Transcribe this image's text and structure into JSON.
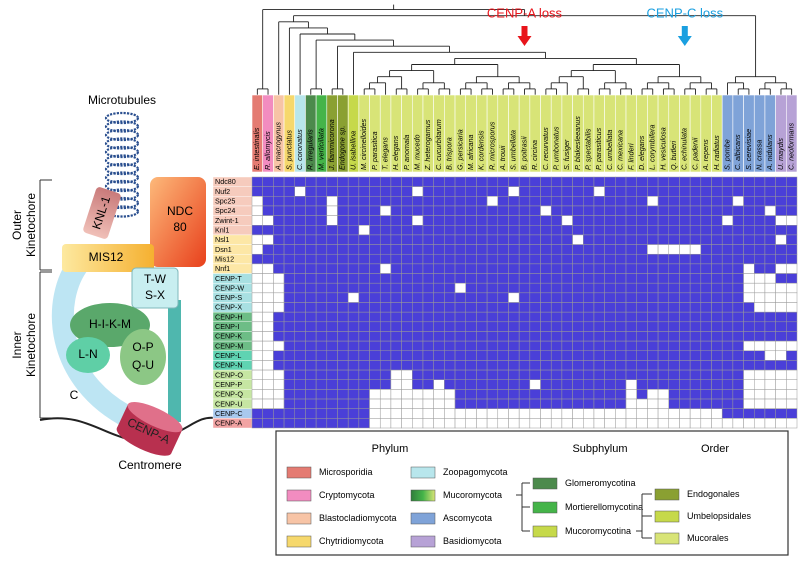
{
  "diagram": {
    "microtubules": "Microtubules",
    "outer": [
      "Outer",
      "Kinetochore"
    ],
    "inner": [
      "Inner",
      "Kinetochore"
    ],
    "ndc80": [
      "NDC",
      "80"
    ],
    "knl1": "KNL-1",
    "mis12": "MIS12",
    "twsx": [
      "T-W",
      "S-X"
    ],
    "hikm": "H-I-K-M",
    "ln": "L-N",
    "opqu": [
      "O-P",
      "Q-U"
    ],
    "c": "C",
    "cenpa": "CENP-A",
    "centromere": "Centromere"
  },
  "events": [
    {
      "label": "CENP-A loss",
      "color": "#e8141b"
    },
    {
      "label": "CENP-C loss",
      "color": "#1a9fe0"
    }
  ],
  "species": [
    {
      "name": "E. intestinalis",
      "color": "#e47b72"
    },
    {
      "name": "R. allomycis",
      "color": "#f28cc0"
    },
    {
      "name": "A. macrogynus",
      "color": "#f7c4a6"
    },
    {
      "name": "S. punctatus",
      "color": "#f6d86c"
    },
    {
      "name": "C. coronatus",
      "color": "#b8e6ec"
    },
    {
      "name": "R. irregularis",
      "color": "#4c8a4c"
    },
    {
      "name": "M. verticillata",
      "color": "#45b449"
    },
    {
      "name": "J. flammicorona",
      "color": "#8aa032"
    },
    {
      "name": "Endogone sp.",
      "color": "#8aa032"
    },
    {
      "name": "U. isabellina",
      "color": "#c6d94a"
    },
    {
      "name": "M. circinelloides",
      "color": "#d8e477"
    },
    {
      "name": "P. parasitica",
      "color": "#d8e477"
    },
    {
      "name": "T. elegans",
      "color": "#d8e477"
    },
    {
      "name": "H. elegans",
      "color": "#d8e477"
    },
    {
      "name": "P. anomala",
      "color": "#d8e477"
    },
    {
      "name": "M. mucedo",
      "color": "#d8e477"
    },
    {
      "name": "Z. heterogamus",
      "color": "#d8e477"
    },
    {
      "name": "C. cucurbitarum",
      "color": "#d8e477"
    },
    {
      "name": "B. trispora",
      "color": "#d8e477"
    },
    {
      "name": "G. persicaria",
      "color": "#d8e477"
    },
    {
      "name": "M. africana",
      "color": "#d8e477"
    },
    {
      "name": "K. cordensis",
      "color": "#d8e477"
    },
    {
      "name": "R. microsporus",
      "color": "#d8e477"
    },
    {
      "name": "A. trouii",
      "color": "#d8e477"
    },
    {
      "name": "S. umbellata",
      "color": "#d8e477"
    },
    {
      "name": "B. poitrasii",
      "color": "#d8e477"
    },
    {
      "name": "R. circina",
      "color": "#d8e477"
    },
    {
      "name": "C. recurvatus",
      "color": "#d8e477"
    },
    {
      "name": "P. umbonatus",
      "color": "#d8e477"
    },
    {
      "name": "S. fusiger",
      "color": "#d8e477"
    },
    {
      "name": "P. blakesleeanus",
      "color": "#d8e477"
    },
    {
      "name": "P. spectabilis",
      "color": "#d8e477"
    },
    {
      "name": "P. parasiticus",
      "color": "#d8e477"
    },
    {
      "name": "C. umbellata",
      "color": "#d8e477"
    },
    {
      "name": "C. mexicana",
      "color": "#d8e477"
    },
    {
      "name": "F. linderi",
      "color": "#d8e477"
    },
    {
      "name": "D. elegans",
      "color": "#d8e477"
    },
    {
      "name": "L. corymbifera",
      "color": "#d8e477"
    },
    {
      "name": "H. vesiculosa",
      "color": "#d8e477"
    },
    {
      "name": "Q. butleri",
      "color": "#d8e477"
    },
    {
      "name": "C. echinulata",
      "color": "#d8e477"
    },
    {
      "name": "C. padenii",
      "color": "#d8e477"
    },
    {
      "name": "A. repens",
      "color": "#d8e477"
    },
    {
      "name": "H. radiatus",
      "color": "#d8e477"
    },
    {
      "name": "S. pombe",
      "color": "#7fa3d8"
    },
    {
      "name": "C. albicans",
      "color": "#7fa3d8"
    },
    {
      "name": "S. cerevisiae",
      "color": "#7fa3d8"
    },
    {
      "name": "N. crassa",
      "color": "#7fa3d8"
    },
    {
      "name": "A. nidulans",
      "color": "#7fa3d8"
    },
    {
      "name": "U. maydis",
      "color": "#b7a2d6"
    },
    {
      "name": "C. neoformans",
      "color": "#b7a2d6"
    }
  ],
  "proteins": [
    {
      "name": "Ndc80",
      "color": "#f6cbbd"
    },
    {
      "name": "Nuf2",
      "color": "#f6cbbd"
    },
    {
      "name": "Spc25",
      "color": "#f6cbbd"
    },
    {
      "name": "Spc24",
      "color": "#f6cbbd"
    },
    {
      "name": "Zwint-1",
      "color": "#f6cbbd"
    },
    {
      "name": "Knl1",
      "color": "#f6cbbd"
    },
    {
      "name": "Nsl1",
      "color": "#fde7a6"
    },
    {
      "name": "Dsn1",
      "color": "#fde7a6"
    },
    {
      "name": "Mis12",
      "color": "#fde7a6"
    },
    {
      "name": "Nnf1",
      "color": "#fde7a6"
    },
    {
      "name": "CENP-T",
      "color": "#a8e0e2"
    },
    {
      "name": "CENP-W",
      "color": "#a8e0e2"
    },
    {
      "name": "CENP-S",
      "color": "#a8e0e2"
    },
    {
      "name": "CENP-X",
      "color": "#a8e0e2"
    },
    {
      "name": "CENP-H",
      "color": "#6dbd86"
    },
    {
      "name": "CENP-I",
      "color": "#6dbd86"
    },
    {
      "name": "CENP-K",
      "color": "#6dbd86"
    },
    {
      "name": "CENP-M",
      "color": "#6dbd86"
    },
    {
      "name": "CENP-L",
      "color": "#5fd3b2"
    },
    {
      "name": "CENP-N",
      "color": "#5fd3b2"
    },
    {
      "name": "CENP-O",
      "color": "#c6e6a2"
    },
    {
      "name": "CENP-P",
      "color": "#c6e6a2"
    },
    {
      "name": "CENP-Q",
      "color": "#c6e6a2"
    },
    {
      "name": "CENP-U",
      "color": "#c6e6a2"
    },
    {
      "name": "CENP-C",
      "color": "#a9c9ee"
    },
    {
      "name": "CENP-A",
      "color": "#f2a3a3"
    }
  ],
  "presence": [
    [
      1,
      1,
      1,
      1,
      1,
      1,
      1,
      1,
      1,
      1,
      1,
      1,
      1,
      1,
      1,
      1,
      1,
      1,
      1,
      1,
      1,
      1,
      1,
      1,
      1,
      1,
      1,
      1,
      1,
      1,
      1,
      1,
      1,
      1,
      1,
      1,
      1,
      1,
      1,
      1,
      1,
      1,
      1,
      1,
      1,
      1,
      1,
      1,
      1,
      1,
      1
    ],
    [
      1,
      1,
      1,
      1,
      0,
      1,
      1,
      1,
      1,
      1,
      1,
      1,
      1,
      1,
      1,
      0,
      1,
      1,
      1,
      1,
      1,
      1,
      1,
      1,
      0,
      1,
      1,
      1,
      1,
      1,
      1,
      1,
      0,
      1,
      1,
      1,
      1,
      1,
      1,
      1,
      1,
      1,
      1,
      1,
      1,
      1,
      1,
      1,
      1,
      1,
      1
    ],
    [
      0,
      1,
      1,
      1,
      1,
      1,
      1,
      0,
      1,
      1,
      1,
      1,
      1,
      1,
      1,
      1,
      1,
      1,
      1,
      1,
      1,
      1,
      0,
      1,
      1,
      1,
      1,
      1,
      1,
      1,
      1,
      1,
      1,
      1,
      1,
      1,
      1,
      0,
      1,
      1,
      1,
      1,
      1,
      1,
      1,
      0,
      1,
      1,
      1,
      1,
      1
    ],
    [
      0,
      1,
      1,
      1,
      1,
      1,
      1,
      0,
      1,
      1,
      1,
      1,
      0,
      1,
      1,
      1,
      1,
      1,
      1,
      1,
      1,
      1,
      1,
      1,
      1,
      1,
      1,
      0,
      1,
      1,
      1,
      1,
      1,
      1,
      1,
      1,
      1,
      1,
      1,
      1,
      1,
      1,
      1,
      1,
      1,
      1,
      1,
      1,
      0,
      1,
      1
    ],
    [
      0,
      0,
      1,
      1,
      1,
      1,
      1,
      0,
      1,
      1,
      1,
      1,
      1,
      1,
      1,
      0,
      1,
      1,
      1,
      1,
      1,
      1,
      1,
      1,
      1,
      1,
      1,
      1,
      1,
      0,
      1,
      1,
      1,
      1,
      1,
      1,
      1,
      1,
      1,
      1,
      1,
      1,
      1,
      1,
      0,
      1,
      1,
      1,
      1,
      0,
      0
    ],
    [
      1,
      1,
      1,
      1,
      1,
      1,
      1,
      1,
      1,
      1,
      0,
      1,
      1,
      1,
      1,
      1,
      1,
      1,
      1,
      1,
      1,
      1,
      1,
      1,
      1,
      1,
      1,
      1,
      1,
      1,
      1,
      1,
      1,
      1,
      1,
      1,
      1,
      1,
      1,
      1,
      1,
      1,
      1,
      1,
      1,
      1,
      1,
      1,
      1,
      1,
      1
    ],
    [
      0,
      0,
      1,
      1,
      1,
      1,
      1,
      1,
      1,
      1,
      1,
      1,
      1,
      1,
      1,
      1,
      1,
      1,
      1,
      1,
      1,
      1,
      1,
      1,
      1,
      1,
      1,
      1,
      1,
      1,
      0,
      1,
      1,
      1,
      1,
      1,
      1,
      1,
      1,
      1,
      1,
      1,
      1,
      1,
      1,
      1,
      1,
      1,
      1,
      0,
      1
    ],
    [
      0,
      1,
      1,
      1,
      1,
      1,
      1,
      1,
      1,
      1,
      1,
      1,
      1,
      1,
      1,
      1,
      1,
      1,
      1,
      1,
      1,
      1,
      1,
      1,
      1,
      1,
      1,
      1,
      1,
      1,
      1,
      1,
      1,
      1,
      1,
      1,
      1,
      0,
      0,
      0,
      0,
      0,
      1,
      1,
      1,
      1,
      1,
      1,
      1,
      1,
      1
    ],
    [
      1,
      1,
      1,
      1,
      1,
      1,
      1,
      1,
      1,
      1,
      1,
      1,
      1,
      1,
      1,
      1,
      1,
      1,
      1,
      1,
      1,
      1,
      1,
      1,
      1,
      1,
      1,
      1,
      1,
      1,
      1,
      1,
      1,
      1,
      1,
      1,
      1,
      1,
      1,
      1,
      1,
      1,
      1,
      1,
      1,
      1,
      1,
      1,
      1,
      1,
      1
    ],
    [
      0,
      0,
      1,
      1,
      1,
      1,
      1,
      1,
      1,
      1,
      1,
      1,
      0,
      1,
      1,
      1,
      1,
      1,
      1,
      1,
      1,
      1,
      1,
      1,
      1,
      1,
      1,
      1,
      1,
      1,
      1,
      1,
      1,
      1,
      1,
      1,
      1,
      1,
      1,
      1,
      1,
      1,
      1,
      1,
      1,
      1,
      0,
      1,
      1,
      0,
      0
    ],
    [
      0,
      0,
      0,
      1,
      1,
      1,
      1,
      1,
      1,
      1,
      1,
      1,
      1,
      1,
      1,
      1,
      1,
      1,
      1,
      1,
      1,
      1,
      1,
      1,
      1,
      1,
      1,
      1,
      1,
      1,
      1,
      1,
      1,
      1,
      1,
      1,
      1,
      1,
      1,
      1,
      1,
      1,
      1,
      1,
      1,
      1,
      0,
      0,
      0,
      1,
      1
    ],
    [
      0,
      0,
      0,
      1,
      1,
      1,
      1,
      1,
      1,
      1,
      1,
      1,
      1,
      1,
      1,
      1,
      1,
      1,
      1,
      0,
      1,
      1,
      1,
      1,
      1,
      1,
      1,
      1,
      1,
      1,
      1,
      1,
      1,
      1,
      1,
      1,
      1,
      1,
      1,
      1,
      1,
      1,
      1,
      1,
      1,
      1,
      0,
      0,
      0,
      0,
      0
    ],
    [
      0,
      0,
      0,
      1,
      1,
      1,
      1,
      1,
      1,
      0,
      1,
      1,
      1,
      1,
      1,
      1,
      1,
      1,
      1,
      1,
      1,
      1,
      1,
      1,
      0,
      1,
      1,
      1,
      1,
      1,
      1,
      1,
      1,
      1,
      1,
      1,
      1,
      1,
      1,
      1,
      1,
      1,
      1,
      1,
      1,
      1,
      0,
      0,
      0,
      0,
      0
    ],
    [
      0,
      0,
      0,
      1,
      1,
      1,
      1,
      1,
      1,
      1,
      1,
      1,
      1,
      1,
      1,
      1,
      1,
      1,
      1,
      1,
      1,
      1,
      1,
      1,
      1,
      1,
      1,
      1,
      1,
      1,
      1,
      1,
      1,
      1,
      1,
      1,
      1,
      1,
      1,
      1,
      1,
      1,
      1,
      1,
      1,
      1,
      1,
      0,
      0,
      0,
      0
    ],
    [
      0,
      0,
      1,
      1,
      1,
      1,
      1,
      1,
      1,
      1,
      1,
      1,
      1,
      1,
      1,
      1,
      1,
      1,
      1,
      1,
      1,
      1,
      1,
      1,
      1,
      1,
      1,
      1,
      1,
      1,
      1,
      1,
      1,
      1,
      1,
      1,
      1,
      1,
      1,
      1,
      1,
      1,
      1,
      1,
      1,
      1,
      1,
      1,
      1,
      1,
      1
    ],
    [
      0,
      0,
      1,
      1,
      1,
      1,
      1,
      1,
      1,
      1,
      1,
      1,
      1,
      1,
      1,
      1,
      1,
      1,
      1,
      1,
      1,
      1,
      1,
      1,
      1,
      1,
      1,
      1,
      1,
      1,
      1,
      1,
      1,
      1,
      1,
      1,
      1,
      1,
      1,
      1,
      1,
      1,
      1,
      1,
      1,
      1,
      1,
      1,
      1,
      1,
      1
    ],
    [
      0,
      0,
      1,
      1,
      1,
      1,
      1,
      1,
      1,
      1,
      1,
      1,
      1,
      1,
      1,
      1,
      1,
      1,
      1,
      1,
      1,
      1,
      1,
      1,
      1,
      1,
      1,
      1,
      1,
      1,
      1,
      1,
      1,
      1,
      1,
      1,
      1,
      1,
      1,
      1,
      1,
      1,
      1,
      1,
      1,
      1,
      1,
      1,
      1,
      1,
      1
    ],
    [
      0,
      0,
      0,
      1,
      1,
      1,
      1,
      1,
      1,
      1,
      1,
      1,
      1,
      1,
      1,
      1,
      1,
      1,
      1,
      1,
      1,
      1,
      1,
      1,
      1,
      1,
      1,
      1,
      1,
      1,
      1,
      1,
      1,
      1,
      1,
      1,
      1,
      1,
      1,
      1,
      1,
      1,
      1,
      1,
      1,
      1,
      0,
      0,
      0,
      0,
      0
    ],
    [
      0,
      0,
      1,
      1,
      1,
      1,
      1,
      1,
      1,
      1,
      1,
      1,
      1,
      1,
      1,
      1,
      1,
      1,
      1,
      1,
      1,
      1,
      1,
      1,
      1,
      1,
      1,
      1,
      1,
      1,
      1,
      1,
      1,
      1,
      1,
      1,
      1,
      1,
      1,
      1,
      1,
      1,
      1,
      1,
      1,
      1,
      1,
      1,
      0,
      0,
      1
    ],
    [
      0,
      0,
      1,
      1,
      1,
      1,
      1,
      1,
      1,
      1,
      1,
      1,
      1,
      1,
      1,
      1,
      1,
      1,
      1,
      1,
      1,
      1,
      1,
      1,
      1,
      1,
      1,
      1,
      1,
      1,
      1,
      1,
      1,
      1,
      1,
      1,
      1,
      1,
      1,
      1,
      1,
      1,
      1,
      1,
      1,
      1,
      1,
      1,
      1,
      1,
      1
    ],
    [
      0,
      0,
      0,
      1,
      1,
      1,
      1,
      1,
      1,
      1,
      1,
      1,
      1,
      0,
      0,
      1,
      1,
      1,
      1,
      1,
      1,
      1,
      1,
      1,
      1,
      1,
      1,
      1,
      1,
      1,
      1,
      1,
      1,
      1,
      1,
      1,
      1,
      1,
      1,
      1,
      1,
      1,
      1,
      1,
      1,
      1,
      0,
      0,
      0,
      0,
      0
    ],
    [
      0,
      0,
      0,
      1,
      1,
      1,
      1,
      1,
      1,
      1,
      1,
      1,
      1,
      0,
      0,
      1,
      1,
      0,
      1,
      1,
      1,
      1,
      1,
      1,
      1,
      1,
      0,
      1,
      1,
      1,
      1,
      1,
      1,
      1,
      1,
      0,
      1,
      1,
      1,
      1,
      1,
      1,
      1,
      1,
      1,
      1,
      0,
      0,
      0,
      0,
      0
    ],
    [
      0,
      0,
      0,
      1,
      1,
      1,
      1,
      1,
      1,
      1,
      1,
      0,
      0,
      0,
      0,
      0,
      0,
      0,
      0,
      1,
      1,
      1,
      1,
      1,
      1,
      1,
      1,
      1,
      1,
      1,
      1,
      1,
      1,
      1,
      1,
      0,
      1,
      0,
      0,
      1,
      1,
      1,
      1,
      1,
      1,
      1,
      0,
      0,
      0,
      0,
      0
    ],
    [
      0,
      0,
      0,
      1,
      1,
      1,
      1,
      1,
      1,
      1,
      1,
      0,
      0,
      0,
      0,
      0,
      0,
      0,
      0,
      1,
      1,
      1,
      1,
      1,
      1,
      1,
      1,
      1,
      1,
      1,
      1,
      1,
      1,
      1,
      1,
      0,
      0,
      0,
      0,
      1,
      1,
      1,
      1,
      1,
      1,
      1,
      0,
      0,
      0,
      0,
      0
    ],
    [
      1,
      1,
      1,
      1,
      1,
      1,
      1,
      1,
      1,
      1,
      1,
      0,
      0,
      0,
      0,
      0,
      0,
      0,
      0,
      0,
      0,
      0,
      0,
      0,
      0,
      0,
      0,
      0,
      0,
      0,
      0,
      0,
      0,
      0,
      0,
      0,
      0,
      0,
      0,
      0,
      0,
      0,
      0,
      0,
      1,
      1,
      1,
      1,
      1,
      1,
      1
    ],
    [
      1,
      1,
      1,
      1,
      1,
      1,
      1,
      1,
      1,
      1,
      1,
      0,
      0,
      0,
      0,
      0,
      0,
      0,
      0,
      0,
      0,
      0,
      0,
      0,
      0,
      0,
      0,
      0,
      0,
      0,
      0,
      0,
      0,
      0,
      0,
      0,
      0,
      0,
      0,
      0,
      0,
      0,
      0,
      0,
      0,
      0,
      0,
      0,
      0,
      0,
      0
    ]
  ],
  "present_color": "#4a3fd8",
  "legend": {
    "phylum_title": "Phylum",
    "phylum": [
      {
        "name": "Microsporidia",
        "color": "#e47b72"
      },
      {
        "name": "Cryptomycota",
        "color": "#f28cc0"
      },
      {
        "name": "Blastocladiomycota",
        "color": "#f7c4a6"
      },
      {
        "name": "Chytridiomycota",
        "color": "#f6d86c"
      },
      {
        "name": "Zoopagomycota",
        "color": "#b8e6ec"
      },
      {
        "name": "Mucoromycota",
        "color": "#45b449"
      },
      {
        "name": "Ascomycota",
        "color": "#7fa3d8"
      },
      {
        "name": "Basidiomycota",
        "color": "#b7a2d6"
      }
    ],
    "subphylum_title": "Subphylum",
    "subphylum": [
      {
        "name": "Glomeromycotina",
        "color": "#4c8a4c"
      },
      {
        "name": "Mortierellomycotina",
        "color": "#45b449"
      },
      {
        "name": "Mucoromycotina",
        "color": "#c6d94a"
      }
    ],
    "order_title": "Order",
    "order": [
      {
        "name": "Endogonales",
        "color": "#8aa032"
      },
      {
        "name": "Umbelopsidales",
        "color": "#c6d94a"
      },
      {
        "name": "Mucorales",
        "color": "#d8e477"
      }
    ]
  }
}
